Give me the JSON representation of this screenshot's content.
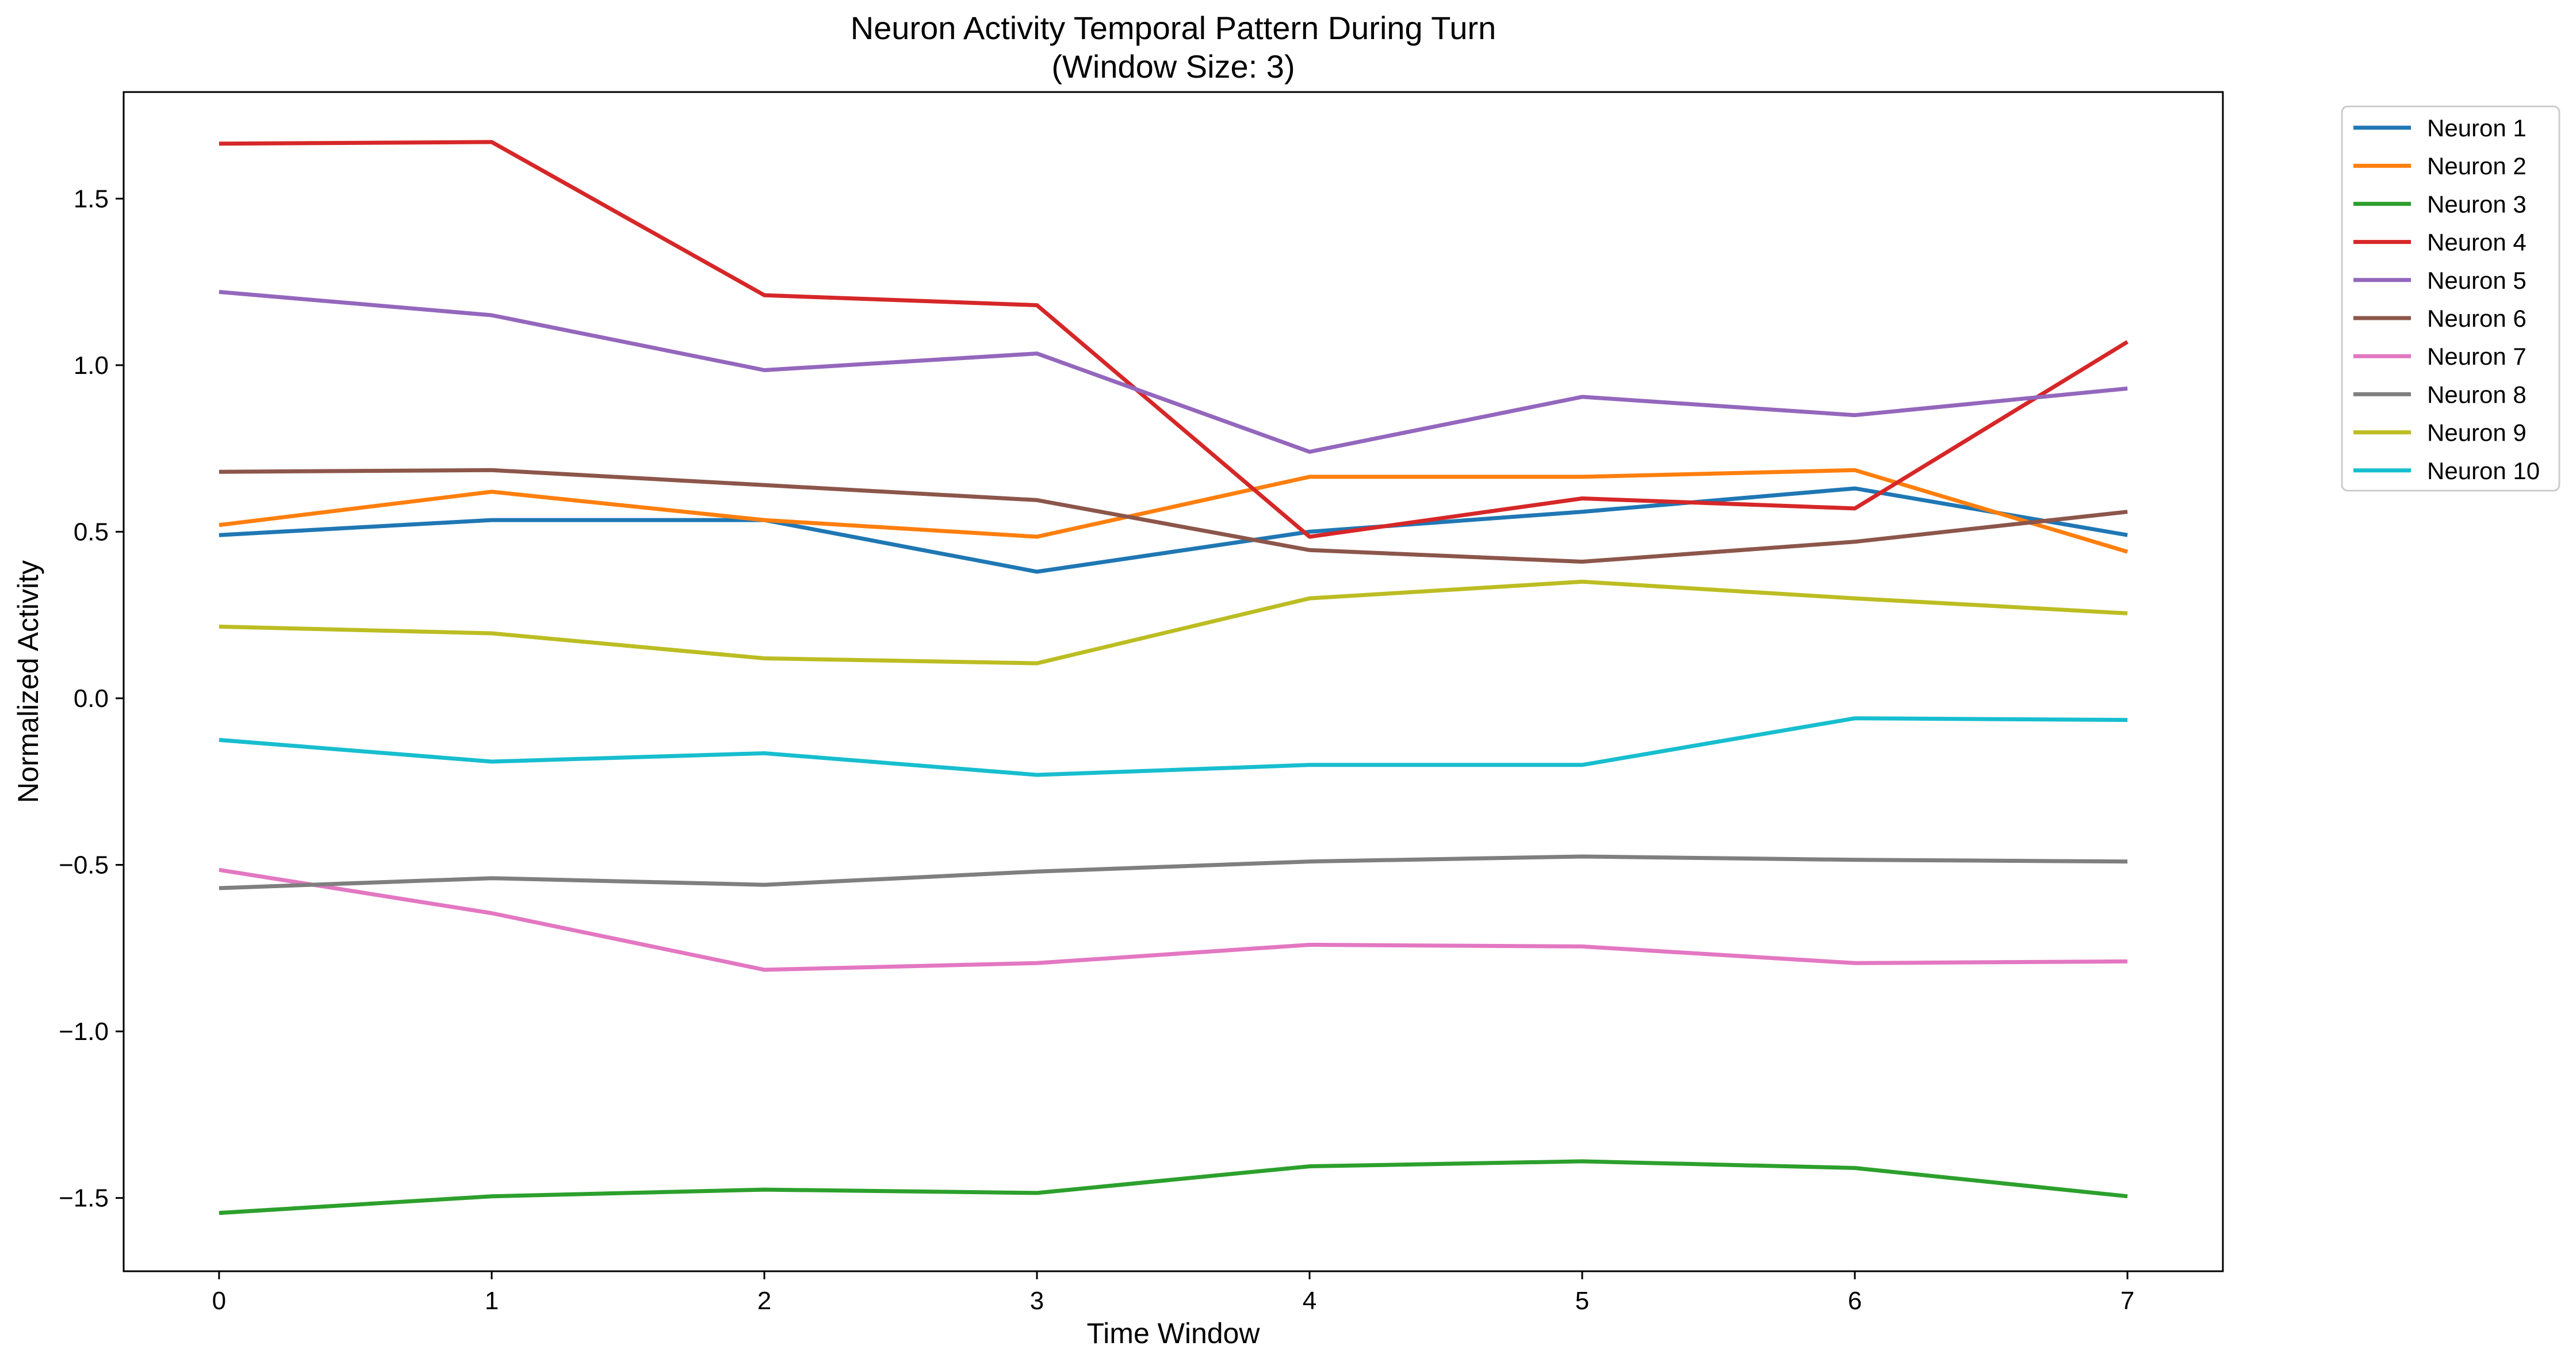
{
  "chart_data": {
    "type": "line",
    "title": "Neuron Activity Temporal Pattern During Turn",
    "subtitle": "(Window Size: 3)",
    "xlabel": "Time Window",
    "ylabel": "Normalized Activity",
    "x": [
      0,
      1,
      2,
      3,
      4,
      5,
      6,
      7
    ],
    "xticks": [
      0,
      1,
      2,
      3,
      4,
      5,
      6,
      7
    ],
    "xtick_labels": [
      "0",
      "1",
      "2",
      "3",
      "4",
      "5",
      "6",
      "7"
    ],
    "yticks": [
      -1.5,
      -1.0,
      -0.5,
      0.0,
      0.5,
      1.0,
      1.5
    ],
    "ytick_labels": [
      "−1.5",
      "−1.0",
      "−0.5",
      "0.0",
      "0.5",
      "1.0",
      "1.5"
    ],
    "xlim": [
      -0.35,
      7.35
    ],
    "ylim": [
      -1.72,
      1.82
    ],
    "grid": false,
    "legend_position": "outside-top-right",
    "series": [
      {
        "name": "Neuron 1",
        "color": "#1f77b4",
        "values": [
          0.49,
          0.535,
          0.535,
          0.38,
          0.5,
          0.56,
          0.63,
          0.49
        ]
      },
      {
        "name": "Neuron 2",
        "color": "#ff7f0e",
        "values": [
          0.52,
          0.62,
          0.535,
          0.485,
          0.665,
          0.665,
          0.685,
          0.44
        ]
      },
      {
        "name": "Neuron 3",
        "color": "#2ca02c",
        "values": [
          -1.545,
          -1.495,
          -1.475,
          -1.485,
          -1.405,
          -1.39,
          -1.41,
          -1.495
        ]
      },
      {
        "name": "Neuron 4",
        "color": "#d62728",
        "values": [
          1.665,
          1.67,
          1.21,
          1.18,
          0.485,
          0.6,
          0.57,
          1.07
        ]
      },
      {
        "name": "Neuron 5",
        "color": "#9467bd",
        "values": [
          1.22,
          1.15,
          0.985,
          1.035,
          0.74,
          0.905,
          0.85,
          0.93
        ]
      },
      {
        "name": "Neuron 6",
        "color": "#8c564b",
        "values": [
          0.68,
          0.685,
          0.64,
          0.595,
          0.445,
          0.41,
          0.47,
          0.56
        ]
      },
      {
        "name": "Neuron 7",
        "color": "#e377c2",
        "values": [
          -0.515,
          -0.645,
          -0.815,
          -0.795,
          -0.74,
          -0.745,
          -0.795,
          -0.79
        ]
      },
      {
        "name": "Neuron 8",
        "color": "#7f7f7f",
        "values": [
          -0.57,
          -0.54,
          -0.56,
          -0.52,
          -0.49,
          -0.475,
          -0.485,
          -0.49
        ]
      },
      {
        "name": "Neuron 9",
        "color": "#bcbd22",
        "values": [
          0.215,
          0.195,
          0.12,
          0.105,
          0.3,
          0.35,
          0.3,
          0.255
        ]
      },
      {
        "name": "Neuron 10",
        "color": "#17becf",
        "values": [
          -0.125,
          -0.19,
          -0.165,
          -0.23,
          -0.2,
          -0.2,
          -0.06,
          -0.065
        ]
      }
    ]
  }
}
